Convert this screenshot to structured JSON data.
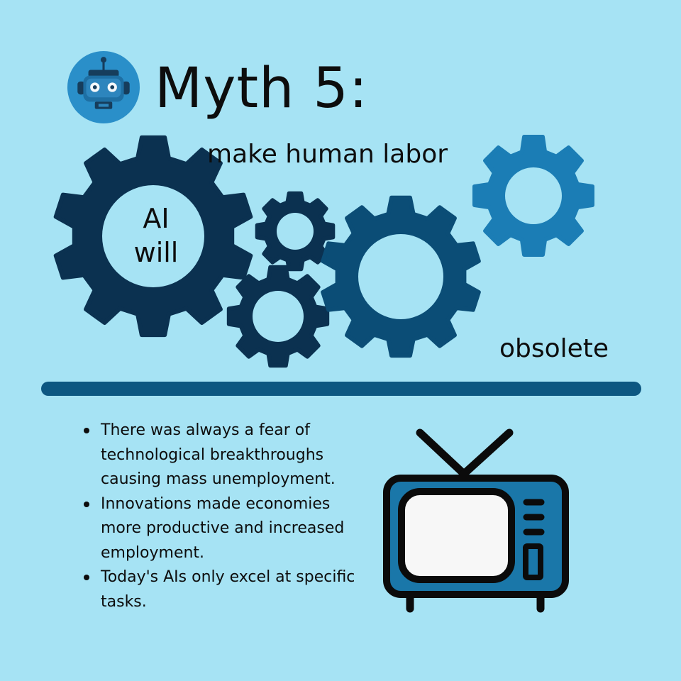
{
  "header": {
    "title": "Myth 5:",
    "icon": "robot-icon"
  },
  "myth": {
    "part1": "AI\nwill",
    "part2": "make human labor",
    "part3": "obsolete"
  },
  "facts": [
    "There was always a fear of technological breakthroughs causing mass unemployment.",
    "Innovations made economies more productive and increased employment.",
    "Today's AIs only excel at specific tasks."
  ],
  "illustration": {
    "icon": "television-icon"
  },
  "colors": {
    "background": "#a6e3f4",
    "gear_dark": "#0b3150",
    "gear_mid": "#0b4d76",
    "gear_light": "#1b7db5",
    "divider": "#0d5781",
    "tv_body": "#1a77a9",
    "text": "#0d0d0d"
  }
}
